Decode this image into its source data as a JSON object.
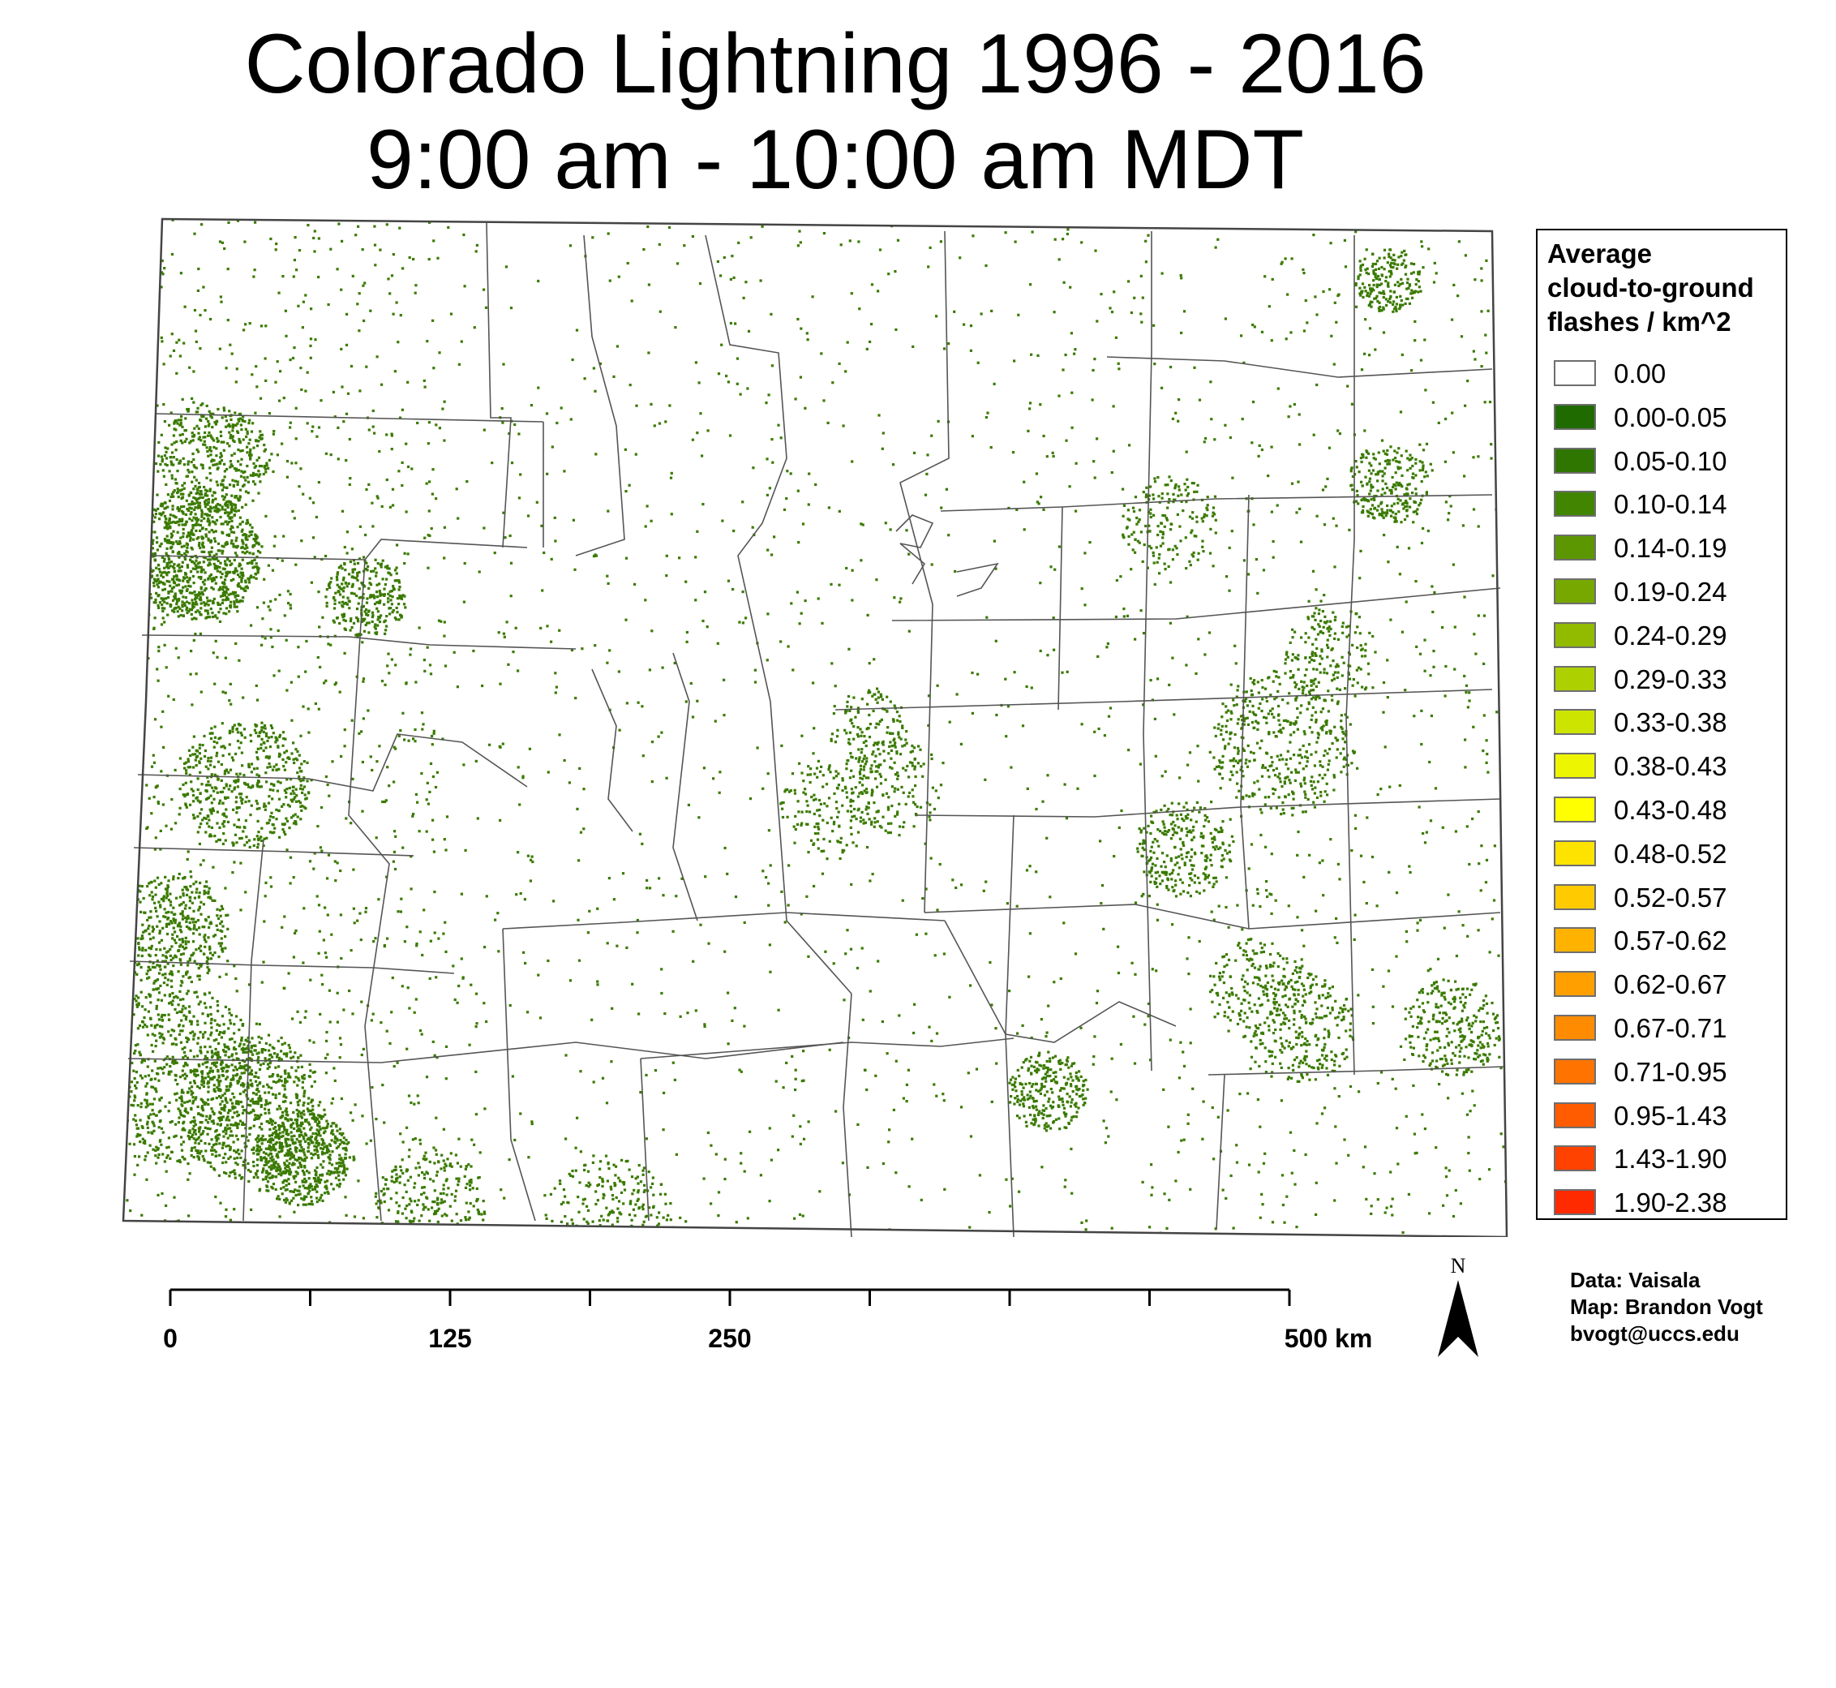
{
  "title": {
    "line1": "Colorado Lightning 1996 - 2016",
    "line2": "9:00 am - 10:00 am MDT"
  },
  "map": {
    "state": "Colorado",
    "county_boundaries": "shown",
    "flash_color": "#3a7a00",
    "background_color": "#ffffff",
    "outline_color": "#555555",
    "dense_areas": [
      "west-slope",
      "southwest San Juan region",
      "northeast plains",
      "southeast plains"
    ]
  },
  "legend": {
    "title_lines": [
      "Average",
      "cloud-to-ground",
      "flashes / km^2"
    ],
    "items": [
      {
        "label": "0.00",
        "color": "#ffffff"
      },
      {
        "label": "0.00-0.05",
        "color": "#1f6b00"
      },
      {
        "label": "0.05-0.10",
        "color": "#2f7600"
      },
      {
        "label": "0.10-0.14",
        "color": "#418500"
      },
      {
        "label": "0.14-0.19",
        "color": "#5c9600"
      },
      {
        "label": "0.19-0.24",
        "color": "#76a800"
      },
      {
        "label": "0.24-0.29",
        "color": "#92bb00"
      },
      {
        "label": "0.29-0.33",
        "color": "#add000"
      },
      {
        "label": "0.33-0.38",
        "color": "#cce400"
      },
      {
        "label": "0.38-0.43",
        "color": "#eef500"
      },
      {
        "label": "0.43-0.48",
        "color": "#ffff00"
      },
      {
        "label": "0.48-0.52",
        "color": "#ffe300"
      },
      {
        "label": "0.52-0.57",
        "color": "#ffcb00"
      },
      {
        "label": "0.57-0.62",
        "color": "#ffb300"
      },
      {
        "label": "0.62-0.67",
        "color": "#ffa000"
      },
      {
        "label": "0.67-0.71",
        "color": "#ff8c00"
      },
      {
        "label": "0.71-0.95",
        "color": "#ff7300"
      },
      {
        "label": "0.95-1.43",
        "color": "#ff5c00"
      },
      {
        "label": "1.43-1.90",
        "color": "#ff4200"
      },
      {
        "label": "1.90-2.38",
        "color": "#ff2a00"
      }
    ]
  },
  "scalebar": {
    "ticks_km": [
      0,
      62.5,
      125,
      187.5,
      250,
      312.5,
      375,
      437.5,
      500
    ],
    "labels": [
      {
        "km": 0,
        "text": "0"
      },
      {
        "km": 125,
        "text": "125"
      },
      {
        "km": 250,
        "text": "250"
      },
      {
        "km": 500,
        "text": "500 km"
      }
    ]
  },
  "north_arrow": {
    "label": "N"
  },
  "credits": {
    "data": "Data: Vaisala",
    "map": "Map: Brandon Vogt",
    "email": "bvogt@uccs.edu"
  }
}
